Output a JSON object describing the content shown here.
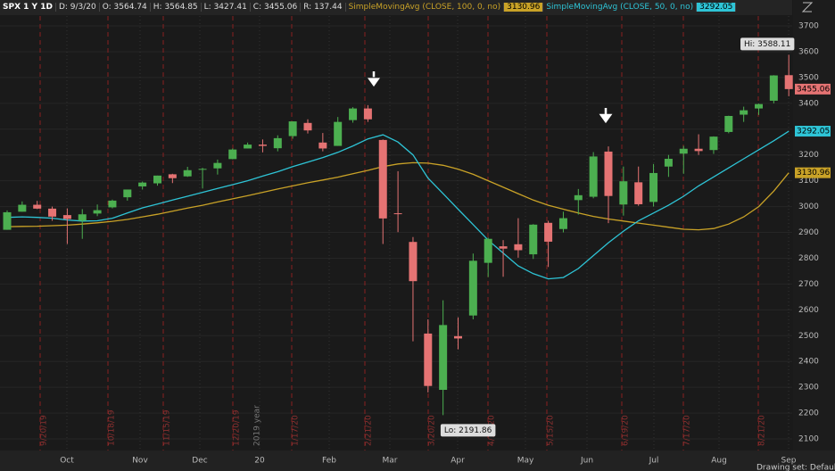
{
  "chart_data": {
    "type": "candlestick",
    "header": {
      "symbol": "SPX 1 Y 1D",
      "fields": [
        "D: 9/3/20",
        "O: 3564.74",
        "H: 3564.85",
        "L: 3427.41",
        "C: 3455.06",
        "R: 137.44"
      ]
    },
    "series": [
      {
        "name": "SimpleMovingAvg (CLOSE, 100, 0, no)",
        "color": "#c9a227",
        "values": [
          2922,
          2923,
          2924,
          2926,
          2928,
          2932,
          2937,
          2943,
          2950,
          2960,
          2970,
          2982,
          2994,
          3005,
          3018,
          3030,
          3042,
          3055,
          3068,
          3080,
          3092,
          3103,
          3114,
          3127,
          3140,
          3155,
          3165,
          3170,
          3168,
          3160,
          3145,
          3125,
          3100,
          3075,
          3050,
          3025,
          3005,
          2990,
          2975,
          2962,
          2952,
          2944,
          2936,
          2928,
          2920,
          2912,
          2910,
          2915,
          2932,
          2960,
          3000,
          3060,
          3130.96
        ]
      },
      {
        "name": "SimpleMovingAvg (CLOSE, 50, 0, no)",
        "color": "#2ec4d6",
        "values": [
          2958,
          2960,
          2958,
          2955,
          2948,
          2944,
          2945,
          2955,
          2975,
          2995,
          3010,
          3025,
          3040,
          3055,
          3070,
          3085,
          3100,
          3118,
          3135,
          3155,
          3172,
          3190,
          3210,
          3235,
          3262,
          3278,
          3250,
          3200,
          3110,
          3050,
          2990,
          2930,
          2870,
          2820,
          2770,
          2740,
          2720,
          2725,
          2760,
          2810,
          2860,
          2905,
          2945,
          2975,
          3005,
          3040,
          3080,
          3115,
          3150,
          3185,
          3220,
          3255,
          3292.05
        ]
      }
    ],
    "ohlc": [
      [
        2910,
        2985,
        2910,
        2978
      ],
      [
        2980,
        3020,
        2980,
        3007
      ],
      [
        3007,
        3022,
        2990,
        2992
      ],
      [
        2992,
        3000,
        2945,
        2961
      ],
      [
        2967,
        2993,
        2855,
        2952
      ],
      [
        2945,
        2990,
        2875,
        2970
      ],
      [
        2973,
        3008,
        2963,
        2986
      ],
      [
        2997,
        3027,
        2993,
        3023
      ],
      [
        3036,
        3066,
        3023,
        3066
      ],
      [
        3078,
        3097,
        3066,
        3093
      ],
      [
        3090,
        3120,
        3081,
        3120
      ],
      [
        3125,
        3127,
        3091,
        3110
      ],
      [
        3117,
        3154,
        3115,
        3141
      ],
      [
        3144,
        3150,
        3070,
        3146
      ],
      [
        3148,
        3182,
        3124,
        3169
      ],
      [
        3184,
        3225,
        3183,
        3221
      ],
      [
        3225,
        3248,
        3225,
        3240
      ],
      [
        3240,
        3260,
        3210,
        3235
      ],
      [
        3226,
        3276,
        3214,
        3265
      ],
      [
        3273,
        3330,
        3263,
        3330
      ],
      [
        3324,
        3338,
        3283,
        3295
      ],
      [
        3248,
        3285,
        3214,
        3225
      ],
      [
        3235,
        3347,
        3235,
        3328
      ],
      [
        3335,
        3385,
        3325,
        3380
      ],
      [
        3380,
        3393,
        3328,
        3338
      ],
      [
        3258,
        3260,
        2855,
        2954
      ],
      [
        2974,
        3137,
        2901,
        2972
      ],
      [
        2863,
        2882,
        2478,
        2711
      ],
      [
        2508,
        2563,
        2280,
        2305
      ],
      [
        2290,
        2637,
        2191.86,
        2541
      ],
      [
        2498,
        2571,
        2447,
        2489
      ],
      [
        2578,
        2818,
        2563,
        2790
      ],
      [
        2782,
        2880,
        2727,
        2875
      ],
      [
        2846,
        2870,
        2728,
        2837
      ],
      [
        2854,
        2955,
        2802,
        2831
      ],
      [
        2815,
        2932,
        2797,
        2930
      ],
      [
        2937,
        2945,
        2766,
        2864
      ],
      [
        2913,
        2980,
        2900,
        2955
      ],
      [
        3025,
        3068,
        2969,
        3044
      ],
      [
        3038,
        3211,
        3032,
        3194
      ],
      [
        3213,
        3233,
        2936,
        3041
      ],
      [
        3008,
        3155,
        2965,
        3098
      ],
      [
        3094,
        3155,
        3003,
        3009
      ],
      [
        3018,
        3165,
        3000,
        3130
      ],
      [
        3155,
        3200,
        3115,
        3185
      ],
      [
        3205,
        3235,
        3127,
        3224
      ],
      [
        3224,
        3280,
        3200,
        3215
      ],
      [
        3219,
        3272,
        3204,
        3271
      ],
      [
        3289,
        3352,
        3284,
        3351
      ],
      [
        3356,
        3387,
        3328,
        3373
      ],
      [
        3380,
        3399,
        3355,
        3397
      ],
      [
        3410,
        3509,
        3400,
        3508
      ],
      [
        3509,
        3588.11,
        3427.41,
        3455.06
      ]
    ],
    "up_color": "#4caf50",
    "down_color": "#e57373",
    "ylim": [
      2100,
      3700
    ],
    "yticks": [
      2100,
      2200,
      2300,
      2400,
      2500,
      2600,
      2700,
      2800,
      2900,
      3000,
      3100,
      3200,
      3300,
      3400,
      3500,
      3600,
      3700
    ],
    "x_labels": [
      "Oct",
      "Nov",
      "Dec",
      "20",
      "Feb",
      "Mar",
      "Apr",
      "May",
      "Jun",
      "Jul",
      "Aug",
      "Sep"
    ],
    "event_labels": [
      "9/20/19",
      "10/18/19",
      "11/15/19",
      "12/20/19",
      "1/17/20",
      "2/21/20",
      "3/20/20",
      "4/17/20",
      "5/15/20",
      "6/19/20",
      "7/17/20",
      "8/21/20"
    ],
    "year_label": "2019 year",
    "hi_label": "Hi: 3588.11",
    "lo_label": "Lo: 2191.86",
    "footer": "Drawing set: Default"
  }
}
